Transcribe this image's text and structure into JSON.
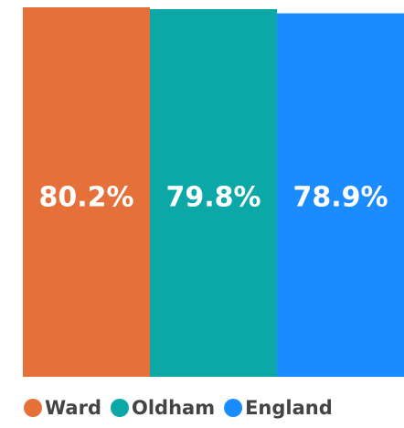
{
  "chart_data": {
    "type": "bar",
    "categories": [
      "Ward",
      "Oldham",
      "England"
    ],
    "values": [
      80.2,
      79.8,
      78.9
    ],
    "value_labels": [
      "80.2%",
      "79.8%",
      "78.9%"
    ],
    "colors": [
      "#e5703a",
      "#0ca8a8",
      "#1a8cff"
    ],
    "ylim": [
      0,
      80.2
    ],
    "legend": "bottom"
  }
}
